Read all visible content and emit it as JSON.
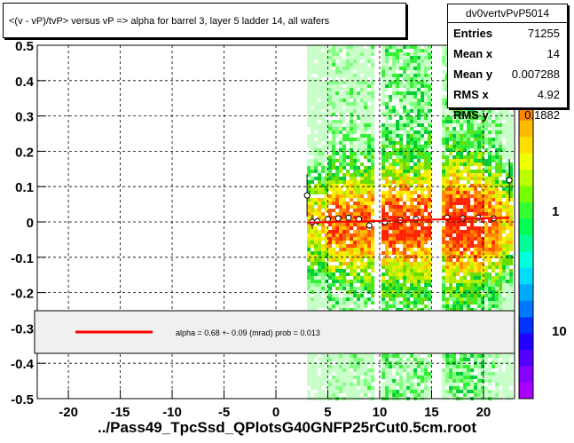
{
  "title": "<(v - vP)/tvP> versus   vP => alpha for barrel 3, layer 5 ladder 14, all wafers",
  "footer": "../Pass49_TpcSsd_QPlotsG40GNFP25rCut0.5cm.root",
  "stats": {
    "name": "dv0vertvPvP5014",
    "rows": [
      {
        "label": "Entries",
        "value": "71255"
      },
      {
        "label": "Mean x",
        "value": "14"
      },
      {
        "label": "Mean y",
        "value": "0.007288"
      },
      {
        "label": "RMS x",
        "value": "4.92"
      },
      {
        "label": "RMS y",
        "value": "0.1882"
      }
    ]
  },
  "legend": {
    "fit_text": "alpha =    0.68 +-  0.09 (mrad) prob = 0.013",
    "fit_color": "#ff0000"
  },
  "chart_data": {
    "type": "heatmap",
    "title": "<(v - vP)/tvP> versus   vP => alpha for barrel 3, layer 5 ladder 14, all wafers",
    "xlim": [
      -23,
      23
    ],
    "ylim": [
      -0.5,
      0.5
    ],
    "x_ticks": [
      "-20",
      "-15",
      "-10",
      "-5",
      "0",
      "5",
      "10",
      "15",
      "20"
    ],
    "y_ticks": [
      "-0.5",
      "-0.4",
      "-0.3",
      "-0.2",
      "-0.1",
      "0",
      "0.1",
      "0.2",
      "0.3",
      "0.4",
      "0.5"
    ],
    "z_scale": "log",
    "z_ticks": [
      "1",
      "10"
    ],
    "grid": true,
    "filled_x_range": [
      3,
      22.5
    ],
    "gaps": [
      [
        9.3,
        10.0
      ],
      [
        14.8,
        15.8
      ]
    ],
    "profile_points": [
      {
        "x": 3.0,
        "y": 0.075,
        "err": 0.06
      },
      {
        "x": 3.5,
        "y": 0.0,
        "err": 0.02
      },
      {
        "x": 4.0,
        "y": 0.002,
        "err": 0.01
      },
      {
        "x": 5.0,
        "y": 0.008,
        "err": 0.008
      },
      {
        "x": 6.0,
        "y": 0.01,
        "err": 0.007
      },
      {
        "x": 7.0,
        "y": 0.012,
        "err": 0.007
      },
      {
        "x": 8.0,
        "y": 0.008,
        "err": 0.007
      },
      {
        "x": 9.0,
        "y": -0.01,
        "err": 0.01
      },
      {
        "x": 10.5,
        "y": 0.0,
        "err": 0.007
      },
      {
        "x": 12.0,
        "y": 0.005,
        "err": 0.006
      },
      {
        "x": 13.5,
        "y": 0.008,
        "err": 0.006
      },
      {
        "x": 16.5,
        "y": 0.012,
        "err": 0.006
      },
      {
        "x": 18.0,
        "y": 0.01,
        "err": 0.006
      },
      {
        "x": 19.5,
        "y": 0.012,
        "err": 0.006
      },
      {
        "x": 21.0,
        "y": 0.01,
        "err": 0.007
      },
      {
        "x": 22.5,
        "y": 0.118,
        "err": 0.06
      }
    ],
    "fit_line": {
      "x": [
        3,
        22.5
      ],
      "y": [
        -0.002,
        0.012
      ]
    }
  }
}
